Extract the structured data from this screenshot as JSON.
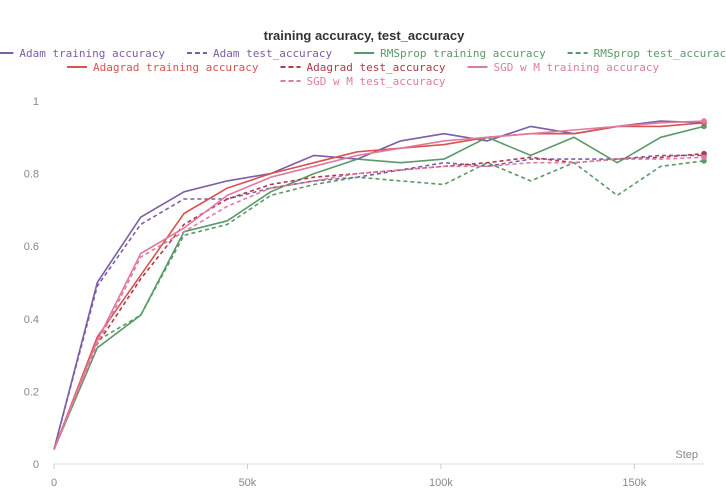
{
  "chart_data": {
    "type": "line",
    "title": "training accuracy, test_accuracy",
    "xlabel": "Step",
    "ylabel": "",
    "xlim": [
      0,
      168000
    ],
    "ylim": [
      0,
      1
    ],
    "x_ticks": [
      0,
      50000,
      100000,
      150000
    ],
    "x_tick_labels": [
      "0",
      "50k",
      "100k",
      "150k"
    ],
    "y_ticks": [
      0,
      0.2,
      0.4,
      0.6,
      0.8,
      1
    ],
    "y_tick_labels": [
      "0",
      "0.2",
      "0.4",
      "0.6",
      "0.8",
      "1"
    ],
    "grid": false,
    "legend_position": "top",
    "series": [
      {
        "name": "Adam training accuracy",
        "color": "#7b5ea7",
        "dash": false,
        "x": [
          0,
          11200,
          22400,
          33600,
          44800,
          56000,
          67200,
          78400,
          89600,
          100800,
          112000,
          123200,
          134400,
          145600,
          156800,
          168000
        ],
        "y": [
          0.04,
          0.5,
          0.68,
          0.75,
          0.78,
          0.8,
          0.85,
          0.84,
          0.89,
          0.91,
          0.89,
          0.93,
          0.91,
          0.93,
          0.945,
          0.94
        ]
      },
      {
        "name": "Adam test_accuracy",
        "color": "#7b5ea7",
        "dash": true,
        "x": [
          0,
          11200,
          22400,
          33600,
          44800,
          56000,
          67200,
          78400,
          89600,
          100800,
          112000,
          123200,
          134400,
          145600,
          156800,
          168000
        ],
        "y": [
          0.04,
          0.49,
          0.66,
          0.73,
          0.73,
          0.76,
          0.78,
          0.79,
          0.81,
          0.83,
          0.82,
          0.84,
          0.84,
          0.84,
          0.85,
          0.85
        ]
      },
      {
        "name": "RMSprop training accuracy",
        "color": "#5a9a6a",
        "dash": false,
        "x": [
          0,
          11200,
          22400,
          33600,
          44800,
          56000,
          67200,
          78400,
          89600,
          100800,
          112000,
          123200,
          134400,
          145600,
          156800,
          168000
        ],
        "y": [
          0.04,
          0.32,
          0.41,
          0.64,
          0.67,
          0.75,
          0.8,
          0.84,
          0.83,
          0.84,
          0.9,
          0.85,
          0.9,
          0.83,
          0.9,
          0.93
        ]
      },
      {
        "name": "RMSprop test_accuracy",
        "color": "#5a9a6a",
        "dash": true,
        "x": [
          0,
          11200,
          22400,
          33600,
          44800,
          56000,
          67200,
          78400,
          89600,
          100800,
          112000,
          123200,
          134400,
          145600,
          156800,
          168000
        ],
        "y": [
          0.04,
          0.34,
          0.41,
          0.63,
          0.66,
          0.74,
          0.77,
          0.79,
          0.78,
          0.77,
          0.83,
          0.78,
          0.83,
          0.74,
          0.82,
          0.835
        ]
      },
      {
        "name": "Adagrad training accuracy",
        "color": "#d9534f",
        "dash": false,
        "x": [
          0,
          11200,
          22400,
          33600,
          44800,
          56000,
          67200,
          78400,
          89600,
          100800,
          112000,
          123200,
          134400,
          145600,
          156800,
          168000
        ],
        "y": [
          0.04,
          0.35,
          0.52,
          0.69,
          0.76,
          0.8,
          0.83,
          0.86,
          0.87,
          0.88,
          0.9,
          0.91,
          0.91,
          0.93,
          0.93,
          0.94
        ]
      },
      {
        "name": "Adagrad test_accuracy",
        "color": "#b03a48",
        "dash": true,
        "x": [
          0,
          11200,
          22400,
          33600,
          44800,
          56000,
          67200,
          78400,
          89600,
          100800,
          112000,
          123200,
          134400,
          145600,
          156800,
          168000
        ],
        "y": [
          0.04,
          0.33,
          0.51,
          0.66,
          0.73,
          0.77,
          0.79,
          0.8,
          0.81,
          0.82,
          0.83,
          0.845,
          0.83,
          0.84,
          0.845,
          0.855
        ]
      },
      {
        "name": "SGD w M training accuracy",
        "color": "#e07aa0",
        "dash": false,
        "x": [
          0,
          11200,
          22400,
          33600,
          44800,
          56000,
          67200,
          78400,
          89600,
          100800,
          112000,
          123200,
          134400,
          145600,
          156800,
          168000
        ],
        "y": [
          0.04,
          0.34,
          0.58,
          0.65,
          0.74,
          0.79,
          0.82,
          0.85,
          0.87,
          0.89,
          0.9,
          0.91,
          0.92,
          0.93,
          0.94,
          0.945
        ]
      },
      {
        "name": "SGD w M test_accuracy",
        "color": "#e07aa0",
        "dash": true,
        "x": [
          0,
          11200,
          22400,
          33600,
          44800,
          56000,
          67200,
          78400,
          89600,
          100800,
          112000,
          123200,
          134400,
          145600,
          156800,
          168000
        ],
        "y": [
          0.04,
          0.33,
          0.57,
          0.64,
          0.71,
          0.76,
          0.78,
          0.8,
          0.81,
          0.82,
          0.82,
          0.83,
          0.83,
          0.84,
          0.84,
          0.845
        ]
      }
    ]
  }
}
